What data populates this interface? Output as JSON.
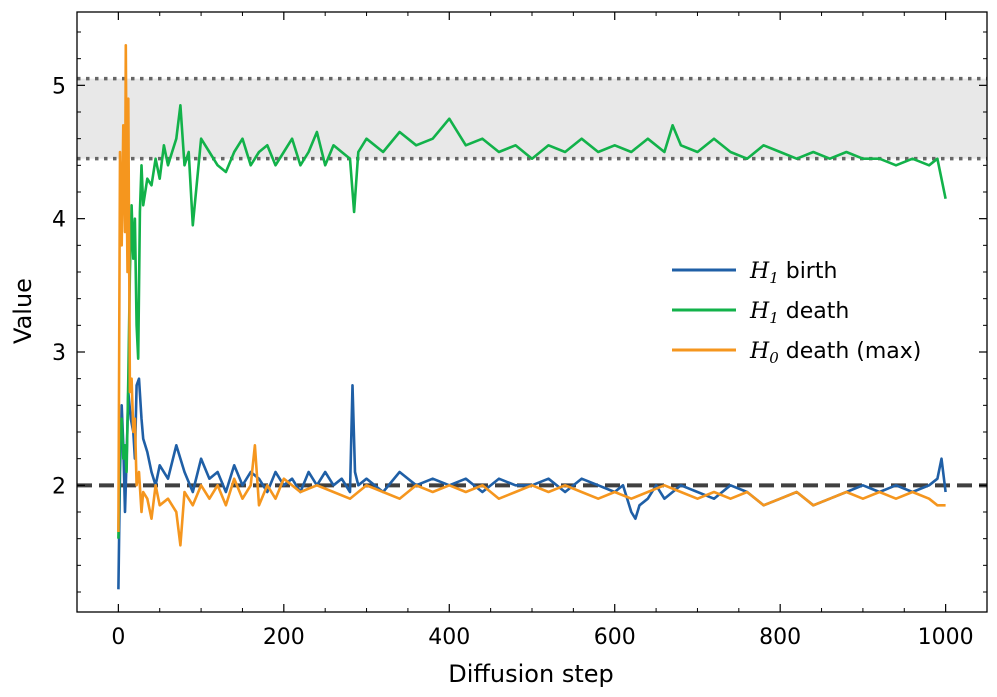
{
  "chart_data": {
    "type": "line",
    "xlabel": "Diffusion step",
    "ylabel": "Value",
    "xlim": [
      -50,
      1050
    ],
    "ylim": [
      1.05,
      5.55
    ],
    "xticks": [
      0,
      200,
      400,
      600,
      800,
      1000
    ],
    "xtick_labels": [
      "0",
      "200",
      "400",
      "600",
      "800",
      "1000"
    ],
    "yticks": [
      2,
      3,
      4,
      5
    ],
    "ytick_labels": [
      "2",
      "3",
      "4",
      "5"
    ],
    "grid": false,
    "legend_position": "center-right",
    "band": {
      "y_low": 4.45,
      "y_high": 5.05,
      "color": "#e8e8e8",
      "line_style": "dotted",
      "line_color": "#666666"
    },
    "reference_line": {
      "y": 2.0,
      "style": "dashed",
      "color": "#404040"
    },
    "series": [
      {
        "name": "birth",
        "math_symbol": "H",
        "math_subscript": "1",
        "color": "#1f5fa6",
        "x": [
          0,
          2,
          4,
          6,
          8,
          10,
          12,
          15,
          18,
          20,
          22,
          25,
          28,
          30,
          35,
          40,
          45,
          50,
          60,
          70,
          80,
          90,
          100,
          110,
          120,
          130,
          140,
          150,
          160,
          170,
          180,
          190,
          200,
          210,
          220,
          230,
          240,
          250,
          260,
          270,
          280,
          283,
          286,
          290,
          300,
          320,
          340,
          360,
          380,
          400,
          420,
          440,
          460,
          480,
          500,
          520,
          540,
          560,
          580,
          600,
          610,
          620,
          625,
          630,
          640,
          650,
          660,
          680,
          700,
          720,
          740,
          760,
          780,
          800,
          820,
          840,
          860,
          880,
          900,
          920,
          940,
          960,
          980,
          990,
          995,
          1000
        ],
        "values": [
          1.22,
          2.1,
          2.6,
          2.3,
          1.8,
          2.2,
          2.7,
          2.5,
          2.4,
          2.2,
          2.75,
          2.8,
          2.5,
          2.35,
          2.25,
          2.1,
          2.0,
          2.15,
          2.05,
          2.3,
          2.1,
          1.95,
          2.2,
          2.05,
          2.1,
          1.95,
          2.15,
          2.0,
          2.1,
          2.05,
          1.95,
          2.1,
          2.0,
          2.05,
          1.95,
          2.1,
          2.0,
          2.1,
          2.0,
          2.05,
          1.95,
          2.75,
          2.1,
          2.0,
          2.05,
          1.95,
          2.1,
          2.0,
          2.05,
          2.0,
          2.05,
          1.95,
          2.05,
          2.0,
          2.0,
          2.05,
          1.95,
          2.05,
          2.0,
          1.95,
          2.0,
          1.8,
          1.75,
          1.85,
          1.9,
          2.0,
          1.9,
          2.0,
          1.95,
          1.9,
          2.0,
          1.95,
          1.85,
          1.9,
          1.95,
          1.85,
          1.9,
          1.95,
          2.0,
          1.95,
          2.0,
          1.95,
          2.0,
          2.05,
          2.2,
          1.95
        ]
      },
      {
        "name": "death",
        "math_symbol": "H",
        "math_subscript": "1",
        "color": "#12b24a",
        "x": [
          0,
          2,
          4,
          6,
          8,
          10,
          12,
          14,
          16,
          18,
          20,
          22,
          24,
          26,
          28,
          30,
          35,
          40,
          45,
          50,
          55,
          60,
          65,
          70,
          75,
          80,
          85,
          90,
          100,
          110,
          120,
          130,
          140,
          150,
          160,
          170,
          180,
          190,
          200,
          210,
          220,
          230,
          240,
          250,
          260,
          270,
          280,
          285,
          290,
          300,
          320,
          340,
          360,
          380,
          400,
          420,
          440,
          460,
          480,
          500,
          520,
          540,
          560,
          580,
          600,
          620,
          640,
          660,
          670,
          680,
          700,
          720,
          740,
          760,
          780,
          800,
          820,
          840,
          860,
          880,
          900,
          920,
          940,
          960,
          980,
          990,
          995,
          1000
        ],
        "values": [
          1.6,
          2.4,
          2.5,
          2.2,
          2.3,
          2.1,
          2.8,
          3.6,
          4.1,
          3.7,
          4.0,
          3.2,
          2.95,
          4.05,
          4.4,
          4.1,
          4.3,
          4.25,
          4.45,
          4.3,
          4.55,
          4.4,
          4.5,
          4.6,
          4.85,
          4.4,
          4.5,
          3.95,
          4.6,
          4.5,
          4.4,
          4.35,
          4.5,
          4.6,
          4.4,
          4.5,
          4.55,
          4.4,
          4.5,
          4.6,
          4.4,
          4.5,
          4.65,
          4.4,
          4.55,
          4.5,
          4.45,
          4.05,
          4.5,
          4.6,
          4.5,
          4.65,
          4.55,
          4.6,
          4.75,
          4.55,
          4.6,
          4.5,
          4.55,
          4.45,
          4.55,
          4.5,
          4.6,
          4.5,
          4.55,
          4.5,
          4.6,
          4.5,
          4.7,
          4.55,
          4.5,
          4.6,
          4.5,
          4.45,
          4.55,
          4.5,
          4.45,
          4.5,
          4.45,
          4.5,
          4.45,
          4.45,
          4.4,
          4.45,
          4.4,
          4.45,
          4.3,
          4.15
        ]
      },
      {
        "name": "death (max)",
        "math_symbol": "H",
        "math_subscript": "0",
        "color": "#f5961e",
        "x": [
          0,
          2,
          4,
          6,
          8,
          9,
          10,
          11,
          12,
          14,
          16,
          18,
          20,
          22,
          25,
          28,
          30,
          35,
          40,
          45,
          50,
          60,
          70,
          75,
          80,
          90,
          100,
          110,
          120,
          130,
          140,
          150,
          160,
          165,
          170,
          180,
          190,
          200,
          220,
          240,
          260,
          280,
          300,
          320,
          340,
          360,
          380,
          400,
          420,
          440,
          460,
          480,
          500,
          520,
          540,
          560,
          580,
          600,
          620,
          640,
          660,
          680,
          700,
          720,
          740,
          760,
          780,
          800,
          820,
          840,
          860,
          880,
          900,
          920,
          940,
          960,
          980,
          990,
          1000
        ],
        "values": [
          1.65,
          4.5,
          3.8,
          4.7,
          3.9,
          5.3,
          4.3,
          3.6,
          4.9,
          2.7,
          2.8,
          2.4,
          2.5,
          2.0,
          2.1,
          1.8,
          1.95,
          1.9,
          1.75,
          2.0,
          1.85,
          1.9,
          1.8,
          1.55,
          1.95,
          1.85,
          2.0,
          1.9,
          2.0,
          1.85,
          2.05,
          1.9,
          2.0,
          2.3,
          1.85,
          2.0,
          1.9,
          2.05,
          1.95,
          2.0,
          1.95,
          1.9,
          2.0,
          1.95,
          1.9,
          2.0,
          1.95,
          2.0,
          1.95,
          2.0,
          1.9,
          1.95,
          2.0,
          1.95,
          2.0,
          1.95,
          1.9,
          1.95,
          1.9,
          1.95,
          2.0,
          1.95,
          1.9,
          1.95,
          1.9,
          1.95,
          1.85,
          1.9,
          1.95,
          1.85,
          1.9,
          1.95,
          1.9,
          1.95,
          1.9,
          1.95,
          1.9,
          1.85,
          1.85
        ]
      }
    ]
  }
}
